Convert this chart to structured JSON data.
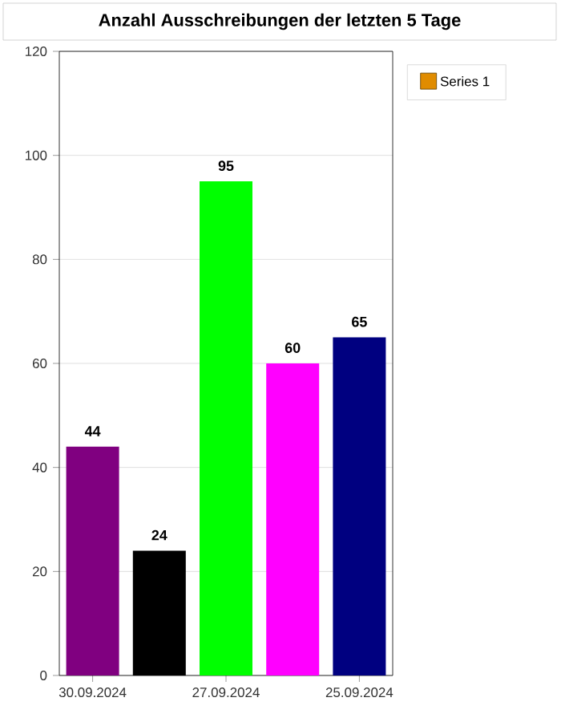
{
  "chart_data": {
    "type": "bar",
    "title": "Anzahl Ausschreibungen der letzten 5 Tage",
    "categories": [
      "30.09.2024",
      null,
      "27.09.2024",
      null,
      "25.09.2024"
    ],
    "series": [
      {
        "name": "Series 1",
        "color": "#e08c00",
        "values": [
          44,
          24,
          95,
          60,
          65
        ],
        "colors": [
          "#800080",
          "#000000",
          "#00ff00",
          "#ff00ff",
          "#000080"
        ]
      }
    ],
    "ylim": [
      0,
      120
    ],
    "yticks": [
      0,
      20,
      40,
      60,
      80,
      100,
      120
    ],
    "grid": "y",
    "legend": "top right",
    "data_labels": true
  }
}
